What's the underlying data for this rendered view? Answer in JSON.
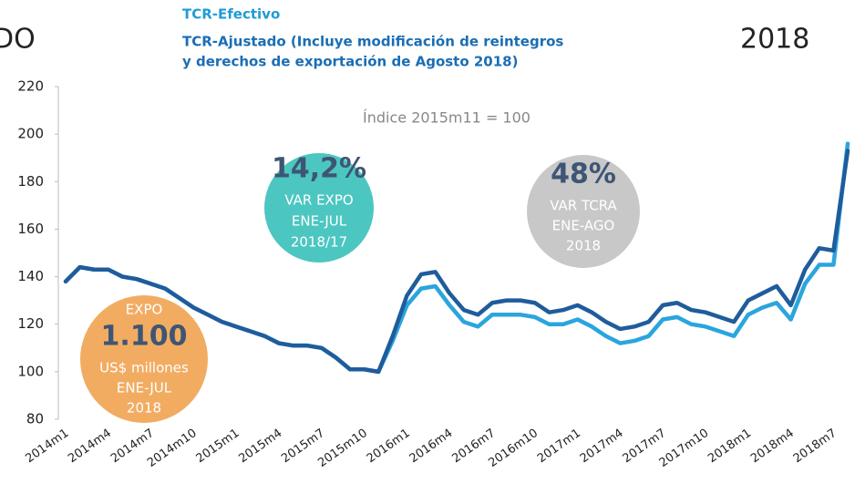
{
  "chart_data": {
    "type": "line",
    "corner_left": "DO",
    "corner_right": "2018",
    "legend_title": "TCR-Efectivo",
    "title": "TCR-Ajustado (Incluye modificación de reintegros",
    "title_line2": "y derechos de exportación de Agosto 2018)",
    "subtitle": "Índice 2015m11 = 100",
    "categories": [
      "2014m1",
      null,
      null,
      "2014m4",
      null,
      null,
      "2014m7",
      null,
      null,
      "2014m10",
      null,
      null,
      "2015m1",
      null,
      null,
      "2015m4",
      null,
      null,
      "2015m7",
      null,
      null,
      "2015m10",
      null,
      null,
      "2016m1",
      null,
      null,
      "2016m4",
      null,
      null,
      "2016m7",
      null,
      null,
      "2016m10",
      null,
      null,
      "2017m1",
      null,
      null,
      "2017m4",
      null,
      null,
      "2017m7",
      null,
      null,
      "2017m10",
      null,
      null,
      "2018m1",
      null,
      null,
      "2018m4",
      null,
      null,
      "2018m7",
      null
    ],
    "series": [
      {
        "name": "TCR-Efectivo",
        "color": "#2aa5dd",
        "values": [
          138,
          144,
          143,
          143,
          140,
          139,
          137,
          135,
          131,
          127,
          124,
          121,
          119,
          117,
          115,
          112,
          111,
          111,
          110,
          106,
          101,
          101,
          100,
          113,
          128,
          135,
          136,
          128,
          121,
          119,
          124,
          124,
          124,
          123,
          120,
          120,
          122,
          119,
          115,
          112,
          113,
          115,
          122,
          123,
          120,
          119,
          117,
          115,
          124,
          127,
          129,
          122,
          137,
          145,
          145,
          196
        ]
      },
      {
        "name": "TCR-Ajustado",
        "color": "#1f5c9c",
        "values": [
          138,
          144,
          143,
          143,
          140,
          139,
          137,
          135,
          131,
          127,
          124,
          121,
          119,
          117,
          115,
          112,
          111,
          111,
          110,
          106,
          101,
          101,
          100,
          115,
          132,
          141,
          142,
          133,
          126,
          124,
          129,
          130,
          130,
          129,
          125,
          126,
          128,
          125,
          121,
          118,
          119,
          121,
          128,
          129,
          126,
          125,
          123,
          121,
          130,
          133,
          136,
          128,
          143,
          152,
          151,
          193
        ]
      }
    ],
    "ylim": [
      80,
      220
    ],
    "yticks": [
      80,
      100,
      120,
      140,
      160,
      180,
      200,
      220
    ],
    "callouts": [
      {
        "color": "#4cc6c0",
        "lines": [
          "14,2%",
          "VAR EXPO",
          "ENE-JUL",
          "2018/17"
        ]
      },
      {
        "color": "#c8c8c8",
        "lines": [
          "48%",
          "VAR TCRA",
          "ENE-AGO",
          "2018"
        ]
      },
      {
        "color": "#f2ac62",
        "lines": [
          "EXPO",
          "1.100",
          "US$ millones",
          "ENE-JUL",
          "2018"
        ]
      }
    ]
  }
}
